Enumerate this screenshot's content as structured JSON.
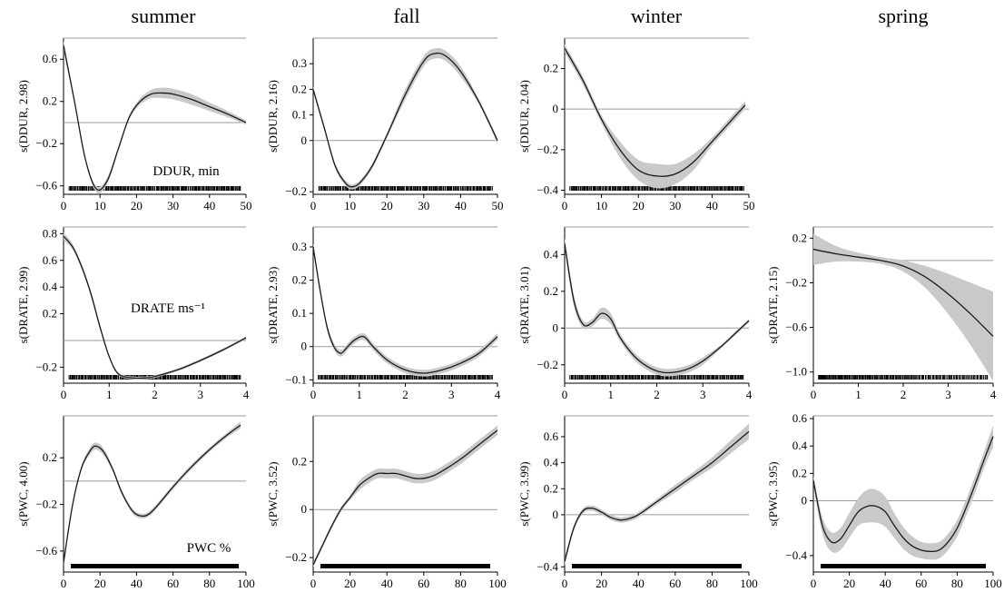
{
  "seasons": [
    "summer",
    "fall",
    "winter",
    "spring"
  ],
  "chart_data": [
    {
      "type": "line",
      "season": "summer",
      "ylabel": "s(DDUR, 2.98)",
      "annotation": "DDUR, min",
      "xlim": [
        0,
        50
      ],
      "ylim": [
        -0.68,
        0.8
      ],
      "xticks": [
        0,
        10,
        20,
        30,
        40,
        50
      ],
      "yticks": [
        0.6,
        0.2,
        -0.2,
        -0.6
      ],
      "ytick_labels": [
        "0.6",
        "0.2",
        "−0.2",
        "−0.6"
      ],
      "rug": "dense",
      "series": [
        {
          "x": [
            0,
            3,
            6,
            9,
            12,
            15,
            18,
            21,
            24,
            27,
            30,
            35,
            40,
            45,
            50
          ],
          "values": [
            0.73,
            0.2,
            -0.35,
            -0.63,
            -0.55,
            -0.25,
            0.05,
            0.2,
            0.27,
            0.28,
            0.27,
            0.22,
            0.15,
            0.08,
            0.0
          ],
          "band": [
            0.05,
            0.02,
            0.02,
            0.03,
            0.03,
            0.02,
            0.02,
            0.03,
            0.04,
            0.05,
            0.05,
            0.05,
            0.04,
            0.03,
            0.02
          ]
        }
      ]
    },
    {
      "type": "line",
      "season": "fall",
      "ylabel": "s(DDUR, 2.16)",
      "annotation": "",
      "xlim": [
        0,
        50
      ],
      "ylim": [
        -0.21,
        0.4
      ],
      "xticks": [
        0,
        10,
        20,
        30,
        40,
        50
      ],
      "yticks": [
        0.3,
        0.2,
        0.1,
        0,
        -0.2
      ],
      "ytick_labels": [
        "0.3",
        "0.2",
        "0.1",
        "0",
        "−0.2"
      ],
      "rug": "dense",
      "series": [
        {
          "x": [
            0,
            3,
            6,
            9,
            11,
            13,
            16,
            20,
            25,
            30,
            33,
            36,
            40,
            45,
            50
          ],
          "values": [
            0.2,
            0.05,
            -0.1,
            -0.17,
            -0.18,
            -0.16,
            -0.1,
            0.02,
            0.18,
            0.31,
            0.34,
            0.33,
            0.27,
            0.15,
            0.0
          ],
          "band": [
            0.01,
            0.01,
            0.01,
            0.01,
            0.01,
            0.01,
            0.01,
            0.01,
            0.02,
            0.02,
            0.02,
            0.02,
            0.02,
            0.01,
            0.01
          ]
        }
      ]
    },
    {
      "type": "line",
      "season": "winter",
      "ylabel": "s(DDUR, 2.04)",
      "annotation": "",
      "xlim": [
        0,
        50
      ],
      "ylim": [
        -0.42,
        0.35
      ],
      "xticks": [
        0,
        10,
        20,
        30,
        40,
        50
      ],
      "yticks": [
        0.2,
        0,
        -0.2,
        -0.4
      ],
      "ytick_labels": [
        "0.2",
        "0",
        "−0.2",
        "−0.4"
      ],
      "rug": "dense",
      "series": [
        {
          "x": [
            0,
            5,
            10,
            15,
            20,
            25,
            30,
            35,
            40,
            45,
            49
          ],
          "values": [
            0.3,
            0.14,
            -0.05,
            -0.2,
            -0.3,
            -0.33,
            -0.32,
            -0.26,
            -0.16,
            -0.06,
            0.02
          ],
          "band": [
            0.02,
            0.02,
            0.02,
            0.04,
            0.05,
            0.06,
            0.05,
            0.04,
            0.02,
            0.02,
            0.02
          ]
        }
      ]
    },
    {
      "type": "line",
      "season": "summer",
      "ylabel": "s(DRATE, 2.99)",
      "annotation": "DRATE ms⁻¹",
      "xlim": [
        0,
        4
      ],
      "ylim": [
        -0.32,
        0.85
      ],
      "xticks": [
        0,
        1,
        2,
        3,
        4
      ],
      "yticks": [
        0.8,
        0.6,
        0.4,
        0.2,
        -0.2
      ],
      "ytick_labels": [
        "0.8",
        "0.6",
        "0.4",
        "0.2",
        "−0.2"
      ],
      "rug": "dense",
      "series": [
        {
          "x": [
            0,
            0.2,
            0.4,
            0.6,
            0.8,
            1.0,
            1.2,
            1.5,
            1.8,
            2.0,
            2.5,
            3.0,
            3.5,
            4.0
          ],
          "values": [
            0.78,
            0.7,
            0.55,
            0.35,
            0.1,
            -0.12,
            -0.25,
            -0.28,
            -0.28,
            -0.27,
            -0.22,
            -0.15,
            -0.07,
            0.02
          ],
          "band": [
            0.03,
            0.02,
            0.02,
            0.02,
            0.02,
            0.01,
            0.01,
            0.01,
            0.01,
            0.01,
            0.01,
            0.01,
            0.01,
            0.01
          ]
        }
      ]
    },
    {
      "type": "line",
      "season": "fall",
      "ylabel": "s(DRATE, 2.93)",
      "annotation": "",
      "xlim": [
        0,
        4
      ],
      "ylim": [
        -0.11,
        0.36
      ],
      "xticks": [
        0,
        1,
        2,
        3,
        4
      ],
      "yticks": [
        0.3,
        0.2,
        0.1,
        0,
        -0.1
      ],
      "ytick_labels": [
        "0.3",
        "0.2",
        "0.1",
        "0",
        "−0.1"
      ],
      "rug": "dense",
      "series": [
        {
          "x": [
            0,
            0.15,
            0.3,
            0.45,
            0.6,
            0.75,
            0.9,
            1.1,
            1.3,
            1.6,
            2.0,
            2.4,
            2.8,
            3.2,
            3.6,
            4.0
          ],
          "values": [
            0.3,
            0.17,
            0.06,
            0.0,
            -0.02,
            0.0,
            0.02,
            0.03,
            0.0,
            -0.04,
            -0.07,
            -0.08,
            -0.07,
            -0.05,
            -0.02,
            0.03
          ],
          "band": [
            0.01,
            0.01,
            0.01,
            0.01,
            0.01,
            0.01,
            0.01,
            0.01,
            0.01,
            0.01,
            0.01,
            0.01,
            0.01,
            0.01,
            0.01,
            0.01
          ]
        }
      ]
    },
    {
      "type": "line",
      "season": "winter",
      "ylabel": "s(DRATE, 3.01)",
      "annotation": "",
      "xlim": [
        0,
        4
      ],
      "ylim": [
        -0.3,
        0.55
      ],
      "xticks": [
        0,
        1,
        2,
        3,
        4
      ],
      "yticks": [
        0.4,
        0.2,
        0,
        -0.2
      ],
      "ytick_labels": [
        "0.4",
        "0.2",
        "0",
        "−0.2"
      ],
      "rug": "dense",
      "series": [
        {
          "x": [
            0,
            0.2,
            0.4,
            0.6,
            0.8,
            1.0,
            1.2,
            1.5,
            1.8,
            2.1,
            2.4,
            2.7,
            3.0,
            3.4,
            3.7,
            4.0
          ],
          "values": [
            0.46,
            0.15,
            0.02,
            0.03,
            0.08,
            0.05,
            -0.05,
            -0.15,
            -0.21,
            -0.24,
            -0.24,
            -0.22,
            -0.18,
            -0.1,
            -0.03,
            0.04
          ],
          "band": [
            0.03,
            0.03,
            0.02,
            0.02,
            0.03,
            0.03,
            0.02,
            0.02,
            0.02,
            0.02,
            0.02,
            0.02,
            0.02,
            0.01,
            0.01,
            0.01
          ]
        }
      ]
    },
    {
      "type": "line",
      "season": "spring",
      "ylabel": "s(DRATE, 2.15)",
      "annotation": "",
      "xlim": [
        0,
        4
      ],
      "ylim": [
        -1.1,
        0.3
      ],
      "xticks": [
        0,
        1,
        2,
        3,
        4
      ],
      "yticks": [
        0.2,
        -0.2,
        -0.6,
        -1.0
      ],
      "ytick_labels": [
        "0.2",
        "−0.2",
        "−0.6",
        "−1.0"
      ],
      "rug": "dense-left",
      "series": [
        {
          "x": [
            0,
            0.5,
            1.0,
            1.5,
            2.0,
            2.5,
            3.0,
            3.5,
            4.0
          ],
          "values": [
            0.1,
            0.06,
            0.03,
            0.0,
            -0.05,
            -0.15,
            -0.3,
            -0.48,
            -0.68
          ],
          "band": [
            0.14,
            0.07,
            0.04,
            0.03,
            0.05,
            0.1,
            0.18,
            0.28,
            0.4
          ]
        }
      ]
    },
    {
      "type": "line",
      "season": "summer",
      "ylabel": "s(PWC, 4.00)",
      "annotation": "PWC %",
      "xlim": [
        0,
        100
      ],
      "ylim": [
        -0.78,
        0.56
      ],
      "xticks": [
        0,
        20,
        40,
        60,
        80,
        100
      ],
      "yticks": [
        0.2,
        -0.2,
        -0.6
      ],
      "ytick_labels": [
        "0.2",
        "−0.2",
        "−0.6"
      ],
      "rug": "solid",
      "series": [
        {
          "x": [
            0,
            5,
            10,
            15,
            18,
            22,
            27,
            32,
            38,
            43,
            47,
            52,
            60,
            70,
            80,
            90,
            97
          ],
          "values": [
            -0.7,
            -0.2,
            0.12,
            0.27,
            0.3,
            0.25,
            0.1,
            -0.1,
            -0.26,
            -0.3,
            -0.28,
            -0.2,
            -0.05,
            0.12,
            0.27,
            0.4,
            0.48
          ],
          "band": [
            0.02,
            0.02,
            0.02,
            0.03,
            0.03,
            0.03,
            0.02,
            0.02,
            0.02,
            0.02,
            0.02,
            0.02,
            0.02,
            0.02,
            0.02,
            0.02,
            0.03
          ]
        }
      ]
    },
    {
      "type": "line",
      "season": "fall",
      "ylabel": "s(PWC, 3.52)",
      "annotation": "",
      "xlim": [
        0,
        100
      ],
      "ylim": [
        -0.26,
        0.39
      ],
      "xticks": [
        0,
        20,
        40,
        60,
        80,
        100
      ],
      "yticks": [
        0.2,
        0,
        -0.2
      ],
      "ytick_labels": [
        "0.2",
        "0",
        "−0.2"
      ],
      "rug": "solid",
      "series": [
        {
          "x": [
            0,
            5,
            10,
            15,
            20,
            25,
            30,
            35,
            40,
            45,
            50,
            55,
            60,
            65,
            70,
            80,
            90,
            100
          ],
          "values": [
            -0.23,
            -0.15,
            -0.07,
            0.0,
            0.05,
            0.1,
            0.13,
            0.15,
            0.15,
            0.15,
            0.14,
            0.13,
            0.13,
            0.14,
            0.16,
            0.21,
            0.27,
            0.33
          ],
          "band": [
            0.01,
            0.01,
            0.01,
            0.01,
            0.01,
            0.02,
            0.02,
            0.02,
            0.02,
            0.02,
            0.02,
            0.02,
            0.02,
            0.02,
            0.02,
            0.02,
            0.02,
            0.02
          ]
        }
      ]
    },
    {
      "type": "line",
      "season": "winter",
      "ylabel": "s(PWC, 3.99)",
      "annotation": "",
      "xlim": [
        0,
        100
      ],
      "ylim": [
        -0.44,
        0.76
      ],
      "xticks": [
        0,
        20,
        40,
        60,
        80,
        100
      ],
      "yticks": [
        0.6,
        0.4,
        0.2,
        0,
        -0.4
      ],
      "ytick_labels": [
        "0.6",
        "0.4",
        "0.2",
        "0",
        "−0.4"
      ],
      "rug": "solid",
      "series": [
        {
          "x": [
            0,
            5,
            10,
            15,
            20,
            25,
            30,
            35,
            40,
            50,
            60,
            70,
            80,
            90,
            100
          ],
          "values": [
            -0.36,
            -0.1,
            0.03,
            0.05,
            0.02,
            -0.02,
            -0.04,
            -0.03,
            0.0,
            0.1,
            0.2,
            0.3,
            0.4,
            0.52,
            0.64
          ],
          "band": [
            0.03,
            0.02,
            0.02,
            0.02,
            0.02,
            0.02,
            0.02,
            0.02,
            0.02,
            0.02,
            0.03,
            0.03,
            0.04,
            0.05,
            0.06
          ]
        }
      ]
    },
    {
      "type": "line",
      "season": "spring",
      "ylabel": "s(PWC, 3.95)",
      "annotation": "",
      "xlim": [
        0,
        100
      ],
      "ylim": [
        -0.52,
        0.62
      ],
      "xticks": [
        0,
        20,
        40,
        60,
        80,
        100
      ],
      "yticks": [
        0.6,
        0.4,
        0.2,
        0,
        -0.4
      ],
      "ytick_labels": [
        "0.6",
        "0.4",
        "0.2",
        "0",
        "−0.4"
      ],
      "rug": "solid",
      "series": [
        {
          "x": [
            0,
            5,
            10,
            15,
            20,
            25,
            30,
            35,
            40,
            45,
            50,
            55,
            60,
            65,
            70,
            75,
            80,
            85,
            90,
            95,
            100
          ],
          "values": [
            0.15,
            -0.18,
            -0.3,
            -0.28,
            -0.18,
            -0.08,
            -0.04,
            -0.04,
            -0.08,
            -0.18,
            -0.27,
            -0.33,
            -0.36,
            -0.37,
            -0.36,
            -0.3,
            -0.2,
            -0.05,
            0.12,
            0.3,
            0.47
          ],
          "band": [
            0.03,
            0.06,
            0.07,
            0.08,
            0.09,
            0.1,
            0.12,
            0.12,
            0.11,
            0.09,
            0.08,
            0.07,
            0.06,
            0.06,
            0.06,
            0.06,
            0.06,
            0.06,
            0.06,
            0.06,
            0.08
          ]
        }
      ]
    }
  ]
}
